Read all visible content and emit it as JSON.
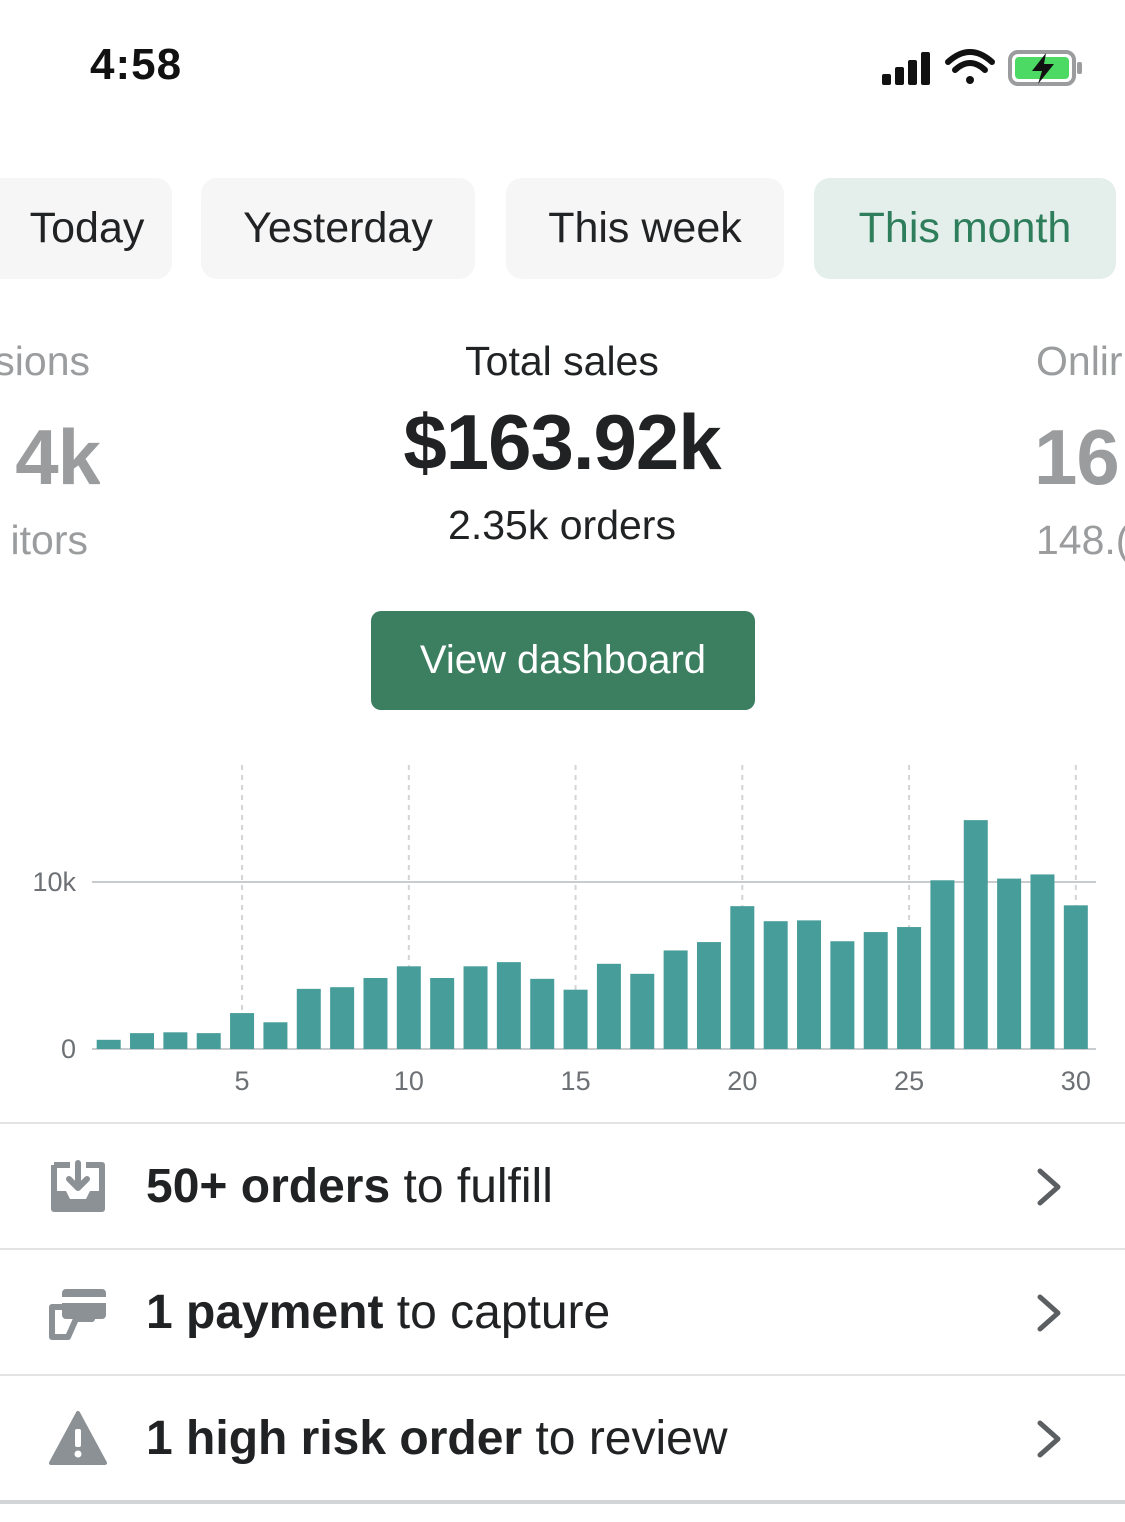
{
  "status_bar": {
    "time": "4:58",
    "icons": [
      "cellular-signal-icon",
      "wifi-icon",
      "battery-charging-icon"
    ],
    "battery_color": "#4cd964"
  },
  "tabs": [
    {
      "label": "Today",
      "active": false
    },
    {
      "label": "Yesterday",
      "active": false
    },
    {
      "label": "This week",
      "active": false
    },
    {
      "label": "This month",
      "active": true
    }
  ],
  "metrics": {
    "left_partial": {
      "label": "sions",
      "value": "4k",
      "sub": "itors"
    },
    "main": {
      "label": "Total sales",
      "value": "$163.92k",
      "sub": "2.35k orders"
    },
    "right_partial": {
      "label": "Onlir",
      "value": "16",
      "sub": "148.("
    }
  },
  "view_dashboard_label": "View dashboard",
  "chart_data": {
    "type": "bar",
    "x": [
      1,
      2,
      3,
      4,
      5,
      6,
      7,
      8,
      9,
      10,
      11,
      12,
      13,
      14,
      15,
      16,
      17,
      18,
      19,
      20,
      21,
      22,
      23,
      24,
      25,
      26,
      27,
      28,
      29,
      30
    ],
    "values": [
      550,
      950,
      1000,
      950,
      2150,
      1600,
      3600,
      3700,
      4250,
      4950,
      4250,
      4950,
      5200,
      4200,
      3550,
      5100,
      4500,
      5900,
      6400,
      8550,
      7650,
      7700,
      6450,
      7000,
      7300,
      10100,
      13700,
      10200,
      10450,
      8600
    ],
    "x_ticks": [
      "5",
      "10",
      "15",
      "20",
      "25",
      "30"
    ],
    "x_tick_values": [
      5,
      10,
      15,
      20,
      25,
      30
    ],
    "y_ticks": [
      "0",
      "10k"
    ],
    "y_tick_values": [
      0,
      10000
    ],
    "ylim": [
      0,
      17000
    ],
    "bar_color": "#479d9a",
    "grid": true
  },
  "tasks": [
    {
      "icon": "tray-download-icon",
      "bold": "50+ orders",
      "rest": " to fulfill"
    },
    {
      "icon": "credit-card-icon",
      "bold": "1 payment",
      "rest": " to capture"
    },
    {
      "icon": "warning-triangle-icon",
      "bold": "1 high risk order",
      "rest": " to review"
    }
  ]
}
